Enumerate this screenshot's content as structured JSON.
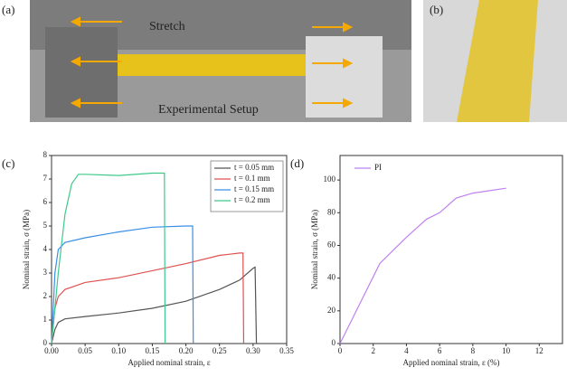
{
  "photos": [
    {
      "label": "(a)",
      "texts": [
        "Stretch",
        "Experimental Setup"
      ]
    },
    {
      "label": "(b)"
    }
  ],
  "chart_data": [
    {
      "type": "line",
      "panel_label": "(c)",
      "x_label": "Applied nominal strain, ε",
      "y_label": "Nominal strain, σ (MPa)",
      "xlim": [
        0,
        0.35
      ],
      "ylim": [
        0,
        8
      ],
      "xticks": [
        {
          "value": 0,
          "label": "0.00"
        },
        {
          "value": 0.05,
          "label": "0.05"
        },
        {
          "value": 0.1,
          "label": "0.10"
        },
        {
          "value": 0.15,
          "label": "0.15"
        },
        {
          "value": 0.2,
          "label": "0.20"
        },
        {
          "value": 0.25,
          "label": "0.25"
        },
        {
          "value": 0.3,
          "label": "0.30"
        },
        {
          "value": 0.35,
          "label": "0.35"
        }
      ],
      "yticks": [
        0,
        1,
        2,
        3,
        4,
        5,
        6,
        7,
        8
      ],
      "legend": "top-right",
      "series": [
        {
          "name": "t = 0.05 mm",
          "color": "#555555",
          "x": [
            0,
            0.005,
            0.01,
            0.02,
            0.05,
            0.1,
            0.15,
            0.2,
            0.25,
            0.28,
            0.3,
            0.303,
            0.305
          ],
          "values": [
            0,
            0.6,
            0.9,
            1.05,
            1.15,
            1.3,
            1.5,
            1.8,
            2.3,
            2.7,
            3.2,
            3.25,
            0
          ]
        },
        {
          "name": "t = 0.1 mm",
          "color": "#e05050",
          "x": [
            0,
            0.005,
            0.01,
            0.02,
            0.05,
            0.1,
            0.15,
            0.2,
            0.25,
            0.28,
            0.285,
            0.286
          ],
          "values": [
            0,
            1.5,
            2.0,
            2.3,
            2.6,
            2.8,
            3.1,
            3.4,
            3.75,
            3.85,
            3.85,
            0
          ]
        },
        {
          "name": "t = 0.15 mm",
          "color": "#3a8ee6",
          "x": [
            0,
            0.005,
            0.01,
            0.02,
            0.05,
            0.1,
            0.15,
            0.2,
            0.21,
            0.211
          ],
          "values": [
            0,
            3,
            4,
            4.3,
            4.5,
            4.75,
            4.95,
            5.0,
            5.0,
            0
          ]
        },
        {
          "name": "t = 0.2 mm",
          "color": "#3ec98a",
          "x": [
            0,
            0.01,
            0.02,
            0.03,
            0.04,
            0.05,
            0.1,
            0.15,
            0.168,
            0.169
          ],
          "values": [
            0,
            3,
            5.5,
            6.8,
            7.2,
            7.2,
            7.15,
            7.25,
            7.25,
            0
          ]
        }
      ]
    },
    {
      "type": "line",
      "panel_label": "(d)",
      "x_label": "Applied nominal strain, ε (%)",
      "y_label": "Nominal strain, σ (MPa)",
      "xlim": [
        0,
        13.4
      ],
      "ylim": [
        0,
        115
      ],
      "xticks": [
        0,
        2,
        4,
        6,
        8,
        10,
        12
      ],
      "yticks": [
        0,
        20,
        40,
        60,
        80,
        100
      ],
      "legend": "top-left",
      "series": [
        {
          "name": "PI",
          "color": "#c080f0",
          "x": [
            0,
            2.4,
            4,
            5.2,
            6,
            7,
            8,
            10
          ],
          "values": [
            0,
            49,
            65,
            76,
            80,
            89,
            92,
            95
          ]
        }
      ]
    }
  ]
}
